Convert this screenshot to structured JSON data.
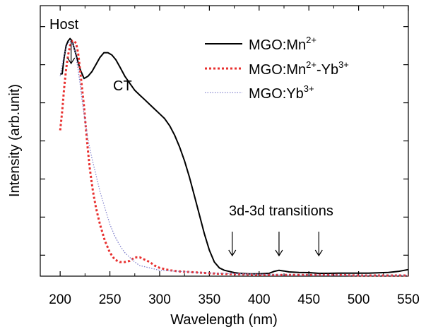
{
  "chart_data": {
    "type": "line",
    "title": "",
    "xlabel": "Wavelength (nm)",
    "ylabel": "Intensity (arb.unit)",
    "xlim": [
      180,
      550
    ],
    "ylim": [
      0,
      1.15
    ],
    "xticks": [
      200,
      250,
      300,
      350,
      400,
      450,
      500,
      550
    ],
    "ytick_count": 7,
    "grid": false,
    "legend_position": "top-right",
    "series": [
      {
        "name": "MGO:Mn",
        "name_sup": "2+",
        "name_suffix": "",
        "name_suffix_sup": "",
        "color": "#000000",
        "style": "solid",
        "x": [
          200,
          202,
          204,
          206,
          208,
          210,
          212,
          214,
          216,
          218,
          220,
          224,
          228,
          232,
          236,
          240,
          244,
          248,
          252,
          256,
          260,
          265,
          270,
          275,
          280,
          285,
          290,
          295,
          300,
          305,
          310,
          315,
          320,
          325,
          330,
          335,
          340,
          345,
          350,
          355,
          360,
          365,
          370,
          375,
          380,
          390,
          400,
          410,
          415,
          420,
          425,
          430,
          440,
          450,
          460,
          470,
          480,
          490,
          500,
          510,
          520,
          530,
          540,
          550
        ],
        "y": [
          0.86,
          0.86,
          0.93,
          0.98,
          1.0,
          1.01,
          1.0,
          0.97,
          0.94,
          0.91,
          0.88,
          0.84,
          0.85,
          0.87,
          0.9,
          0.93,
          0.95,
          0.95,
          0.94,
          0.92,
          0.89,
          0.85,
          0.82,
          0.79,
          0.77,
          0.75,
          0.73,
          0.71,
          0.69,
          0.67,
          0.64,
          0.6,
          0.55,
          0.49,
          0.42,
          0.34,
          0.26,
          0.18,
          0.11,
          0.06,
          0.035,
          0.025,
          0.02,
          0.015,
          0.012,
          0.01,
          0.01,
          0.012,
          0.02,
          0.025,
          0.022,
          0.018,
          0.016,
          0.015,
          0.012,
          0.012,
          0.013,
          0.013,
          0.013,
          0.013,
          0.014,
          0.016,
          0.02,
          0.028
        ]
      },
      {
        "name": "MGO:Mn",
        "name_sup": "2+",
        "name_suffix": "-Yb",
        "name_suffix_sup": "3+",
        "color": "#e8302f",
        "style": "dotted",
        "x": [
          200,
          202,
          204,
          206,
          208,
          210,
          212,
          214,
          216,
          218,
          220,
          222,
          224,
          226,
          228,
          230,
          233,
          236,
          240,
          245,
          250,
          255,
          260,
          265,
          270,
          275,
          280,
          285,
          290,
          295,
          300,
          310,
          320,
          340,
          360,
          380,
          400,
          420,
          440,
          460,
          480,
          500,
          520,
          550
        ],
        "y": [
          0.62,
          0.7,
          0.8,
          0.88,
          0.94,
          0.98,
          1.0,
          1.0,
          0.99,
          0.95,
          0.88,
          0.8,
          0.72,
          0.62,
          0.53,
          0.45,
          0.36,
          0.29,
          0.22,
          0.15,
          0.1,
          0.07,
          0.06,
          0.06,
          0.065,
          0.08,
          0.08,
          0.07,
          0.06,
          0.045,
          0.035,
          0.025,
          0.02,
          0.015,
          0.01,
          0.008,
          0.005,
          0.005,
          0.005,
          0.005,
          0.005,
          0.003,
          0.003,
          0.003
        ]
      },
      {
        "name": "MGO:Yb",
        "name_sup": "3+",
        "name_suffix": "",
        "name_suffix_sup": "",
        "color": "#8080cc",
        "style": "dotted-fine",
        "x": [
          200,
          202,
          204,
          206,
          208,
          210,
          212,
          214,
          216,
          218,
          220,
          222,
          225,
          228,
          232,
          236,
          240,
          245,
          250,
          255,
          260,
          265,
          270,
          275,
          280,
          290,
          300,
          320,
          340,
          360,
          380,
          400,
          420,
          440,
          460,
          480,
          500,
          520,
          550
        ],
        "y": [
          0.85,
          0.9,
          0.94,
          0.97,
          0.99,
          1.0,
          0.99,
          0.97,
          0.93,
          0.88,
          0.82,
          0.75,
          0.66,
          0.58,
          0.5,
          0.43,
          0.36,
          0.29,
          0.22,
          0.17,
          0.13,
          0.1,
          0.08,
          0.06,
          0.045,
          0.035,
          0.025,
          0.02,
          0.015,
          0.012,
          0.01,
          0.008,
          0.006,
          0.005,
          0.005,
          0.005,
          0.004,
          0.004,
          0.004
        ]
      }
    ],
    "annotations": [
      {
        "text": "Host",
        "x": 211,
        "y": 1.0,
        "arrow": true
      },
      {
        "text": "CT",
        "x": 243,
        "y": 0.95,
        "arrow": false
      },
      {
        "text": "3d-3d transitions",
        "x": 420,
        "y": 0.05,
        "arrow": false
      }
    ],
    "arrows_at_x": [
      373,
      420,
      460
    ]
  }
}
